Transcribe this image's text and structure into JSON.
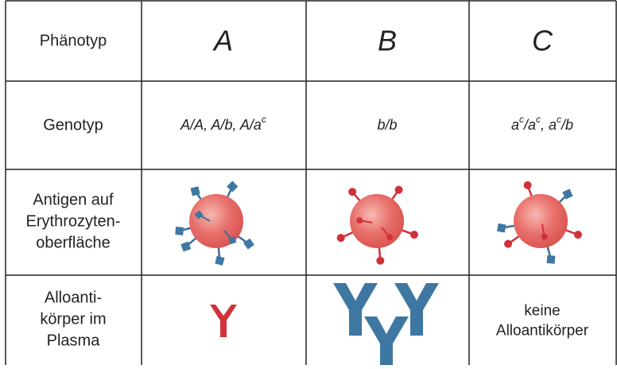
{
  "header": {
    "label": "Phänotyp",
    "phenotypes": [
      "A",
      "B",
      "C"
    ]
  },
  "genotype": {
    "label": "Genotyp",
    "cells": [
      [
        {
          "text": "A/A, A/b, A/a",
          "sup": "c"
        }
      ],
      [
        {
          "text": "b/b"
        }
      ],
      [
        {
          "text": "a",
          "sup": "c"
        },
        {
          "text": "/a",
          "sup": "c"
        },
        {
          "text": ", a",
          "sup": "c"
        },
        {
          "text": "/b"
        }
      ]
    ]
  },
  "antigen": {
    "label_lines": [
      "Antigen auf",
      "Erythrozyten-",
      "oberfläche"
    ]
  },
  "antibodies": {
    "label_lines": [
      "Alloanti-",
      "körper im",
      "Plasma"
    ],
    "none_lines": [
      "keine",
      "Alloantikörper"
    ]
  }
}
